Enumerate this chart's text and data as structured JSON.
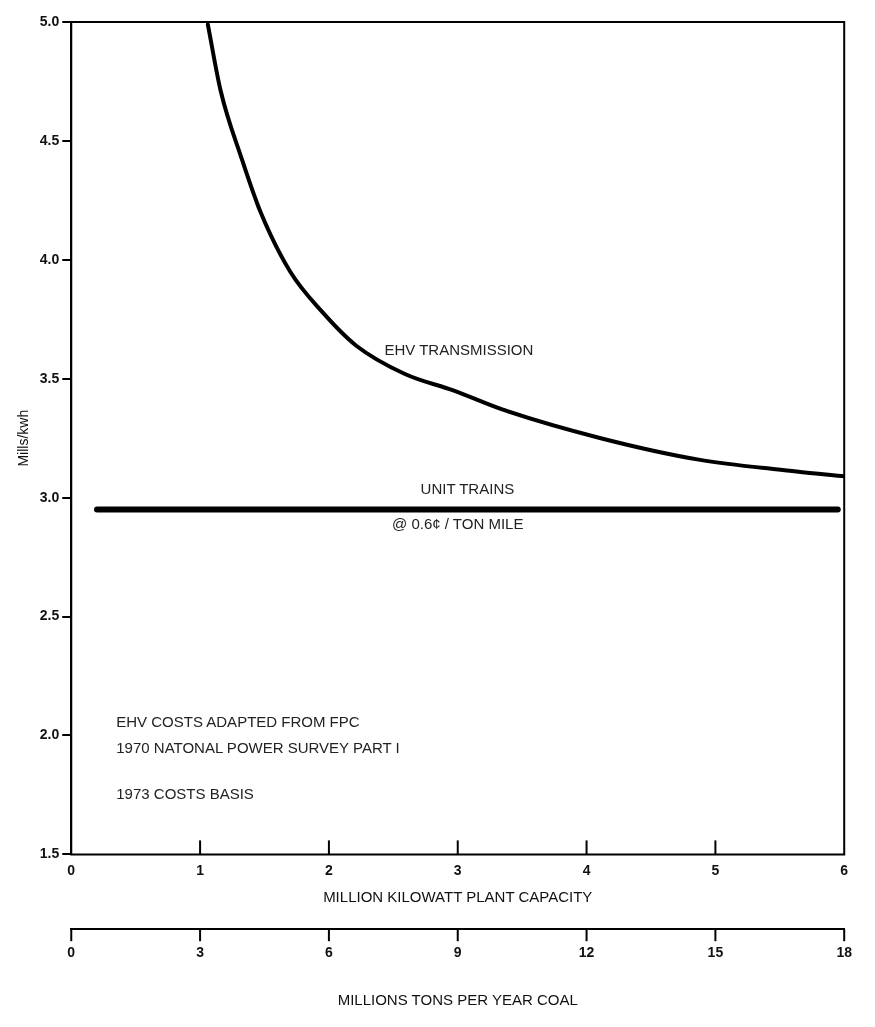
{
  "chart_data": {
    "type": "line",
    "ylabel": "Mills/kwh",
    "xlabel": "MILLION KILOWATT PLANT CAPACITY",
    "x2label": "MILLIONS TONS PER YEAR COAL",
    "xlim": [
      0,
      6
    ],
    "xticks": [
      0,
      1,
      2,
      3,
      4,
      5,
      6
    ],
    "x2lim": [
      0,
      18
    ],
    "x2ticks": [
      0,
      3,
      6,
      9,
      12,
      15,
      18
    ],
    "ylim": [
      1.5,
      5
    ],
    "yticks": [
      1.5,
      {
        "value": 2,
        "label": "2.0"
      },
      2.5,
      {
        "value": 3,
        "label": "3.0"
      },
      3.5,
      {
        "value": 4,
        "label": "4.0"
      },
      4.5,
      {
        "value": 5,
        "label": "5.0"
      }
    ],
    "grid": false,
    "legend": false,
    "marker": "none",
    "line_style": "solid",
    "series": [
      {
        "name": "EHV TRANSMISSION",
        "color": "#000000",
        "x": [
          1.06,
          1.16,
          1.32,
          1.47,
          1.7,
          1.95,
          2.21,
          2.59,
          2.97,
          3.35,
          4.11,
          4.87,
          5.63,
          6.0
        ],
        "values": [
          4.99,
          4.71,
          4.43,
          4.2,
          3.95,
          3.78,
          3.64,
          3.52,
          3.45,
          3.37,
          3.25,
          3.16,
          3.11,
          3.09
        ]
      },
      {
        "name": "UNIT TRAINS",
        "color": "#000000",
        "x": [
          0.2,
          5.95
        ],
        "values": [
          2.95,
          2.95
        ]
      }
    ],
    "annotations": [
      {
        "text": "@ 0.6¢ / TON MILE",
        "x": 3,
        "y": 2.95
      },
      "EHV COSTS ADAPTED FROM FPC",
      "1970 NATONAL POWER SURVEY PART I",
      "1973 COSTS BASIS"
    ]
  }
}
